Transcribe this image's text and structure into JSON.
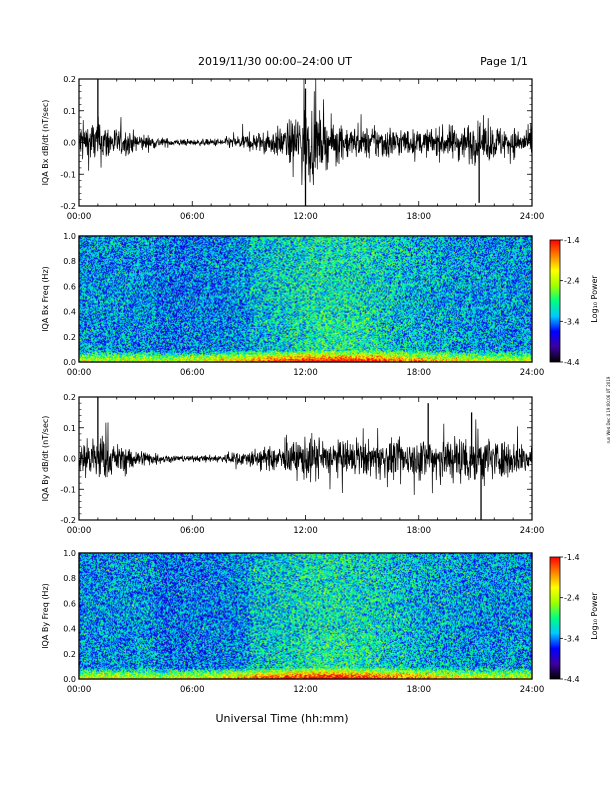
{
  "header": {
    "title": "2019/11/30  00:00–24:00 UT",
    "page": "Page 1/1"
  },
  "footer": {
    "xlabel": "Universal Time (hh:mm)",
    "side_note": "run Wed Dec 4 19:00:06 UT 2019"
  },
  "colors": {
    "trace": "#000000",
    "colormap": [
      "#000000",
      "#3c00a0",
      "#0000ff",
      "#00c8ff",
      "#00ff80",
      "#a0ff00",
      "#ffff00",
      "#ff8000",
      "#ff0000"
    ]
  },
  "chart_data": [
    {
      "type": "line",
      "ylabel": "IQA Bx dB/dt (nT/sec)",
      "xlim": [
        0,
        24
      ],
      "ylim": [
        -0.2,
        0.2
      ],
      "xticks": [
        "00:00",
        "06:00",
        "12:00",
        "18:00",
        "24:00"
      ],
      "yticks": [
        "-0.2",
        "-0.1",
        "0.0",
        "0.1",
        "0.2"
      ],
      "x_hours": [
        0,
        1,
        2,
        3,
        4,
        5,
        6,
        7,
        8,
        9,
        10,
        11,
        11.5,
        12,
        12.5,
        13,
        14,
        15,
        16,
        17,
        18,
        19,
        20,
        21,
        22,
        23,
        24
      ],
      "envelope": [
        0.07,
        0.08,
        0.05,
        0.035,
        0.02,
        0.012,
        0.01,
        0.012,
        0.02,
        0.03,
        0.04,
        0.06,
        0.1,
        0.15,
        0.12,
        0.08,
        0.06,
        0.05,
        0.06,
        0.05,
        0.04,
        0.05,
        0.06,
        0.07,
        0.06,
        0.05,
        0.04
      ],
      "spikes": [
        {
          "x": 1.0,
          "y": 0.2
        },
        {
          "x": 12.0,
          "y": -0.2
        },
        {
          "x": 12.0,
          "y": 0.17
        },
        {
          "x": 21.2,
          "y": -0.19
        }
      ]
    },
    {
      "type": "heatmap",
      "ylabel": "IQA Bx Freq (Hz)",
      "colorbar_label": "Log₁₀ Power",
      "xlim": [
        0,
        24
      ],
      "ylim": [
        0,
        1.0
      ],
      "xticks": [
        "00:00",
        "06:00",
        "12:00",
        "18:00",
        "24:00"
      ],
      "yticks": [
        "0.0",
        "0.2",
        "0.4",
        "0.6",
        "0.8",
        "1.0"
      ],
      "clim": [
        -4.4,
        -1.4
      ],
      "cticks": [
        "-1.4",
        "-2.4",
        "-3.4",
        "-4.4"
      ]
    },
    {
      "type": "line",
      "ylabel": "IQA By dB/dt (nT/sec)",
      "xlim": [
        0,
        24
      ],
      "ylim": [
        -0.2,
        0.2
      ],
      "xticks": [
        "00:00",
        "06:00",
        "12:00",
        "18:00",
        "24:00"
      ],
      "yticks": [
        "-0.2",
        "-0.1",
        "0.0",
        "0.1",
        "0.2"
      ],
      "x_hours": [
        0,
        1,
        2,
        3,
        4,
        5,
        6,
        7,
        8,
        9,
        10,
        11,
        11.5,
        12,
        12.5,
        13,
        14,
        15,
        16,
        17,
        18,
        19,
        20,
        21,
        22,
        23,
        24
      ],
      "envelope": [
        0.06,
        0.09,
        0.05,
        0.035,
        0.02,
        0.012,
        0.01,
        0.012,
        0.02,
        0.03,
        0.04,
        0.05,
        0.06,
        0.08,
        0.08,
        0.07,
        0.06,
        0.06,
        0.07,
        0.06,
        0.07,
        0.1,
        0.08,
        0.1,
        0.07,
        0.06,
        0.06
      ],
      "spikes": [
        {
          "x": 1.0,
          "y": 0.2
        },
        {
          "x": 18.5,
          "y": 0.18
        },
        {
          "x": 21.3,
          "y": -0.2
        },
        {
          "x": 20.8,
          "y": 0.15
        }
      ]
    },
    {
      "type": "heatmap",
      "ylabel": "IQA By Freq (Hz)",
      "colorbar_label": "Log₁₀ Power",
      "xlim": [
        0,
        24
      ],
      "ylim": [
        0,
        1.0
      ],
      "xticks": [
        "00:00",
        "06:00",
        "12:00",
        "18:00",
        "24:00"
      ],
      "yticks": [
        "0.0",
        "0.2",
        "0.4",
        "0.6",
        "0.8",
        "1.0"
      ],
      "clim": [
        -4.4,
        -1.4
      ],
      "cticks": [
        "-1.4",
        "-2.4",
        "-3.4",
        "-4.4"
      ]
    }
  ]
}
